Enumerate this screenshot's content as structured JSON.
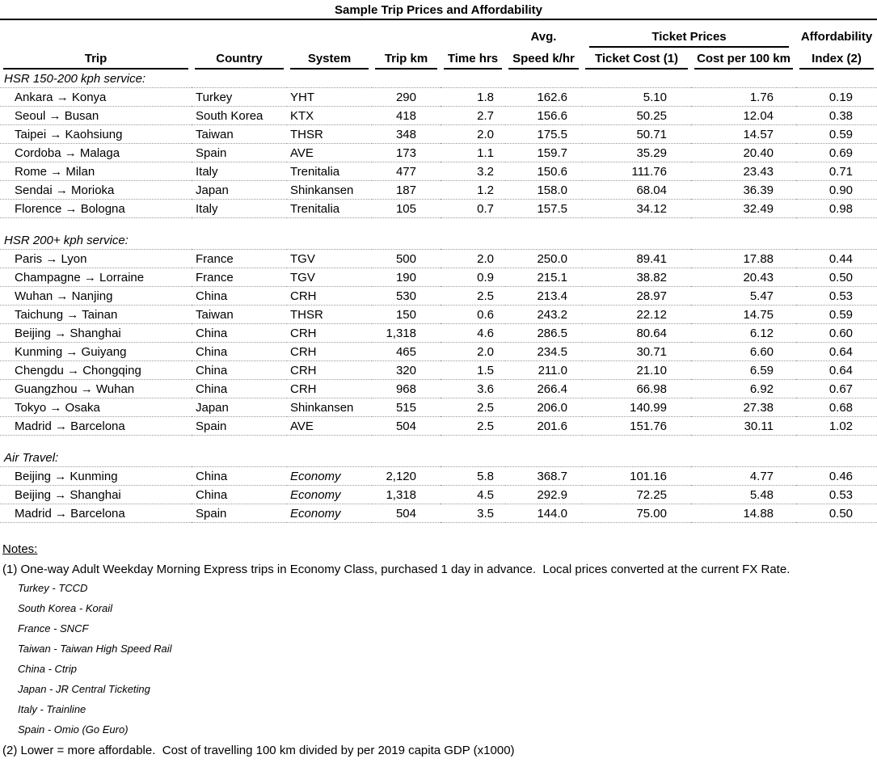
{
  "title": "Sample Trip Prices and Affordability",
  "table": {
    "group_headers": {
      "avg": "Avg.",
      "ticket_prices": "Ticket Prices",
      "affordability": "Affordability"
    },
    "columns": [
      "Trip",
      "Country",
      "System",
      "Trip km",
      "Time hrs",
      "Speed k/hr",
      "Ticket Cost (1)",
      "Cost per 100 km",
      "Index (2)"
    ],
    "sections": [
      {
        "heading": "HSR 150-200 kph service:",
        "rows": [
          {
            "trip": "Ankara → Konya",
            "country": "Turkey",
            "system": "YHT",
            "trip_km": "290",
            "time_hrs": "1.8",
            "speed": "162.6",
            "ticket_cost": "5.10",
            "cost_per_100km": "1.76",
            "index": "0.19"
          },
          {
            "trip": "Seoul → Busan",
            "country": "South Korea",
            "system": "KTX",
            "trip_km": "418",
            "time_hrs": "2.7",
            "speed": "156.6",
            "ticket_cost": "50.25",
            "cost_per_100km": "12.04",
            "index": "0.38"
          },
          {
            "trip": "Taipei → Kaohsiung",
            "country": "Taiwan",
            "system": "THSR",
            "trip_km": "348",
            "time_hrs": "2.0",
            "speed": "175.5",
            "ticket_cost": "50.71",
            "cost_per_100km": "14.57",
            "index": "0.59"
          },
          {
            "trip": "Cordoba → Malaga",
            "country": "Spain",
            "system": "AVE",
            "trip_km": "173",
            "time_hrs": "1.1",
            "speed": "159.7",
            "ticket_cost": "35.29",
            "cost_per_100km": "20.40",
            "index": "0.69"
          },
          {
            "trip": "Rome → Milan",
            "country": "Italy",
            "system": "Trenitalia",
            "trip_km": "477",
            "time_hrs": "3.2",
            "speed": "150.6",
            "ticket_cost": "111.76",
            "cost_per_100km": "23.43",
            "index": "0.71"
          },
          {
            "trip": "Sendai → Morioka",
            "country": "Japan",
            "system": "Shinkansen",
            "trip_km": "187",
            "time_hrs": "1.2",
            "speed": "158.0",
            "ticket_cost": "68.04",
            "cost_per_100km": "36.39",
            "index": "0.90"
          },
          {
            "trip": "Florence → Bologna",
            "country": "Italy",
            "system": "Trenitalia",
            "trip_km": "105",
            "time_hrs": "0.7",
            "speed": "157.5",
            "ticket_cost": "34.12",
            "cost_per_100km": "32.49",
            "index": "0.98"
          }
        ]
      },
      {
        "heading": "HSR 200+ kph service:",
        "rows": [
          {
            "trip": "Paris → Lyon",
            "country": "France",
            "system": "TGV",
            "trip_km": "500",
            "time_hrs": "2.0",
            "speed": "250.0",
            "ticket_cost": "89.41",
            "cost_per_100km": "17.88",
            "index": "0.44"
          },
          {
            "trip": "Champagne → Lorraine",
            "country": "France",
            "system": "TGV",
            "trip_km": "190",
            "time_hrs": "0.9",
            "speed": "215.1",
            "ticket_cost": "38.82",
            "cost_per_100km": "20.43",
            "index": "0.50"
          },
          {
            "trip": "Wuhan → Nanjing",
            "country": "China",
            "system": "CRH",
            "trip_km": "530",
            "time_hrs": "2.5",
            "speed": "213.4",
            "ticket_cost": "28.97",
            "cost_per_100km": "5.47",
            "index": "0.53"
          },
          {
            "trip": "Taichung → Tainan",
            "country": "Taiwan",
            "system": "THSR",
            "trip_km": "150",
            "time_hrs": "0.6",
            "speed": "243.2",
            "ticket_cost": "22.12",
            "cost_per_100km": "14.75",
            "index": "0.59"
          },
          {
            "trip": "Beijing → Shanghai",
            "country": "China",
            "system": "CRH",
            "trip_km": "1,318",
            "time_hrs": "4.6",
            "speed": "286.5",
            "ticket_cost": "80.64",
            "cost_per_100km": "6.12",
            "index": "0.60"
          },
          {
            "trip": "Kunming → Guiyang",
            "country": "China",
            "system": "CRH",
            "trip_km": "465",
            "time_hrs": "2.0",
            "speed": "234.5",
            "ticket_cost": "30.71",
            "cost_per_100km": "6.60",
            "index": "0.64"
          },
          {
            "trip": "Chengdu → Chongqing",
            "country": "China",
            "system": "CRH",
            "trip_km": "320",
            "time_hrs": "1.5",
            "speed": "211.0",
            "ticket_cost": "21.10",
            "cost_per_100km": "6.59",
            "index": "0.64"
          },
          {
            "trip": "Guangzhou → Wuhan",
            "country": "China",
            "system": "CRH",
            "trip_km": "968",
            "time_hrs": "3.6",
            "speed": "266.4",
            "ticket_cost": "66.98",
            "cost_per_100km": "6.92",
            "index": "0.67"
          },
          {
            "trip": "Tokyo → Osaka",
            "country": "Japan",
            "system": "Shinkansen",
            "trip_km": "515",
            "time_hrs": "2.5",
            "speed": "206.0",
            "ticket_cost": "140.99",
            "cost_per_100km": "27.38",
            "index": "0.68"
          },
          {
            "trip": "Madrid → Barcelona",
            "country": "Spain",
            "system": "AVE",
            "trip_km": "504",
            "time_hrs": "2.5",
            "speed": "201.6",
            "ticket_cost": "151.76",
            "cost_per_100km": "30.11",
            "index": "1.02"
          }
        ]
      },
      {
        "heading": "Air Travel:",
        "system_italic": true,
        "rows": [
          {
            "trip": "Beijing → Kunming",
            "country": "China",
            "system": "Economy",
            "trip_km": "2,120",
            "time_hrs": "5.8",
            "speed": "368.7",
            "ticket_cost": "101.16",
            "cost_per_100km": "4.77",
            "index": "0.46"
          },
          {
            "trip": "Beijing → Shanghai",
            "country": "China",
            "system": "Economy",
            "trip_km": "1,318",
            "time_hrs": "4.5",
            "speed": "292.9",
            "ticket_cost": "72.25",
            "cost_per_100km": "5.48",
            "index": "0.53"
          },
          {
            "trip": "Madrid → Barcelona",
            "country": "Spain",
            "system": "Economy",
            "trip_km": "504",
            "time_hrs": "3.5",
            "speed": "144.0",
            "ticket_cost": "75.00",
            "cost_per_100km": "14.88",
            "index": "0.50"
          }
        ]
      }
    ]
  },
  "notes": {
    "heading": "Notes:",
    "note1": "(1) One-way Adult Weekday Morning Express trips in Economy Class, purchased 1 day in advance.  Local prices converted at the current FX Rate.",
    "agencies": [
      "Turkey - TCCD",
      "South Korea - Korail",
      "France - SNCF",
      "Taiwan - Taiwan High Speed Rail",
      "China - Ctrip",
      "Japan - JR Central Ticketing",
      "Italy - Trainline",
      "Spain - Omio (Go Euro)"
    ],
    "note2": "(2) Lower = more affordable.  Cost of travelling 100 km divided by per 2019 capita GDP (x1000)"
  },
  "colors": {
    "text": "#000000",
    "background": "#ffffff",
    "rule": "#000000",
    "dotted_separator": "#9a9a9a"
  }
}
